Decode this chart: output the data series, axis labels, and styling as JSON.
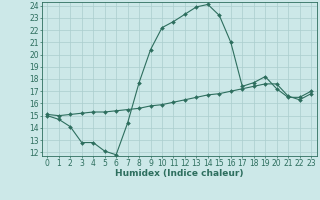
{
  "xlabel": "Humidex (Indice chaleur)",
  "xlim": [
    -0.5,
    23.5
  ],
  "ylim": [
    11.7,
    24.3
  ],
  "yticks": [
    12,
    13,
    14,
    15,
    16,
    17,
    18,
    19,
    20,
    21,
    22,
    23,
    24
  ],
  "xticks": [
    0,
    1,
    2,
    3,
    4,
    5,
    6,
    7,
    8,
    9,
    10,
    11,
    12,
    13,
    14,
    15,
    16,
    17,
    18,
    19,
    20,
    21,
    22,
    23
  ],
  "line1_x": [
    0,
    1,
    2,
    3,
    4,
    5,
    6,
    7,
    8,
    9,
    10,
    11,
    12,
    13,
    14,
    15,
    16,
    17,
    18,
    19,
    20,
    21,
    22,
    23
  ],
  "line1_y": [
    15.0,
    14.7,
    14.1,
    12.8,
    12.8,
    12.1,
    11.8,
    14.4,
    17.7,
    20.4,
    22.2,
    22.7,
    23.3,
    23.9,
    24.1,
    23.2,
    21.0,
    17.4,
    17.7,
    18.2,
    17.2,
    16.5,
    16.5,
    17.0
  ],
  "line2_x": [
    0,
    1,
    2,
    3,
    4,
    5,
    6,
    7,
    8,
    9,
    10,
    11,
    12,
    13,
    14,
    15,
    16,
    17,
    18,
    19,
    20,
    21,
    22,
    23
  ],
  "line2_y": [
    15.1,
    15.0,
    15.1,
    15.2,
    15.3,
    15.3,
    15.4,
    15.5,
    15.6,
    15.8,
    15.9,
    16.1,
    16.3,
    16.5,
    16.7,
    16.8,
    17.0,
    17.2,
    17.4,
    17.6,
    17.6,
    16.6,
    16.3,
    16.8
  ],
  "line_color": "#2d6e5e",
  "bg_color": "#cce8e8",
  "grid_color": "#aacece",
  "xlabel_fontsize": 6.5,
  "tick_fontsize": 5.5
}
